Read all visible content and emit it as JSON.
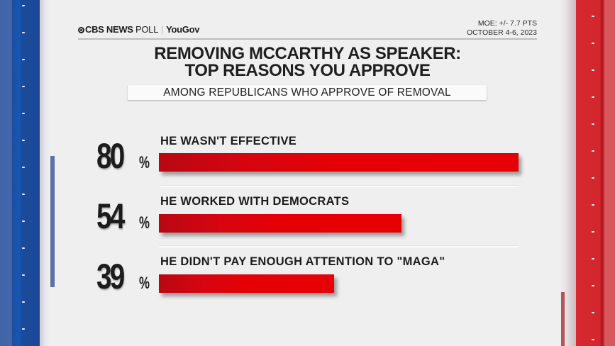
{
  "header": {
    "brand_primary": "CBS NEWS",
    "brand_secondary": "POLL",
    "partner": "YouGov",
    "moe": "MOE: +/- 7.7 PTS",
    "dates": "OCTOBER 4-6, 2023"
  },
  "title_line1": "REMOVING MCCARTHY AS SPEAKER:",
  "title_line2": "TOP REASONS YOU APPROVE",
  "subtitle": "AMONG REPUBLICANS WHO APPROVE OF REMOVAL",
  "colors": {
    "bar": "#e60006",
    "bar_dark": "#b80812",
    "side_left": "#1a57b0",
    "side_right": "#d3262d",
    "text": "#1c1c1c",
    "background": "#efefef"
  },
  "rows": [
    {
      "value": "80",
      "pct_sign": "%",
      "label": "HE WASN'T EFFECTIVE"
    },
    {
      "value": "54",
      "pct_sign": "%",
      "label": "HE WORKED WITH DEMOCRATS"
    },
    {
      "value": "39",
      "pct_sign": "%",
      "label": "HE DIDN'T PAY ENOUGH ATTENTION TO \"MAGA\""
    }
  ],
  "chart_data": {
    "type": "bar",
    "orientation": "horizontal",
    "title": "REMOVING MCCARTHY AS SPEAKER: TOP REASONS YOU APPROVE",
    "subtitle": "AMONG REPUBLICANS WHO APPROVE OF REMOVAL",
    "categories": [
      "HE WASN'T EFFECTIVE",
      "HE WORKED WITH DEMOCRATS",
      "HE DIDN'T PAY ENOUGH ATTENTION TO \"MAGA\""
    ],
    "values": [
      80,
      54,
      39
    ],
    "unit": "%",
    "xlabel": "",
    "ylabel": "",
    "xlim": [
      0,
      80
    ],
    "grid": false,
    "legend": "none",
    "source": "CBS NEWS POLL | YouGov",
    "moe": "+/- 7.7 PTS",
    "dates": "OCTOBER 4-6, 2023"
  }
}
